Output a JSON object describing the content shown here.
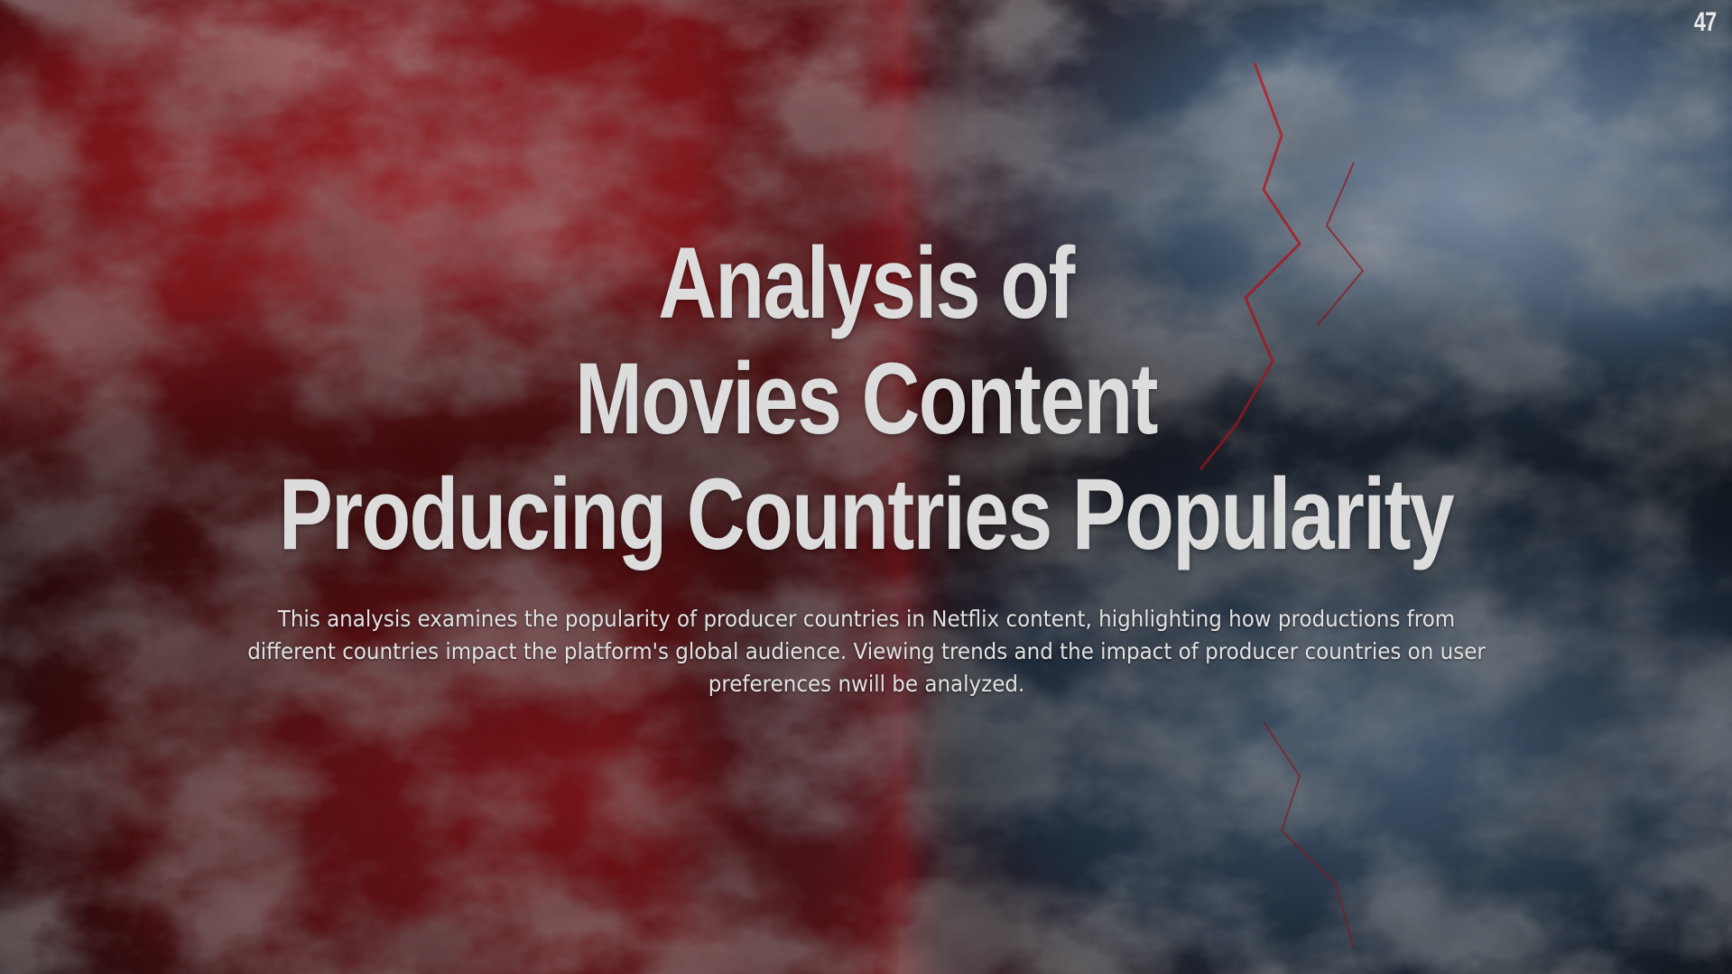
{
  "slide": {
    "page_number": "47",
    "title_lines": [
      "Analysis of",
      "Movies Content",
      "Producing Countries Popularity"
    ],
    "subtitle": "This analysis examines the popularity of producer countries in Netflix content, highlighting how productions from different countries impact the platform's global audience. Viewing trends and the impact of producer countries on user preferences nwill be analyzed."
  },
  "colors": {
    "background": "#050507",
    "smoke_red": "#b3121a",
    "smoke_blue": "#6f8fb0",
    "title_text": "#dcdcdc",
    "body_text": "#e2e2e2"
  }
}
